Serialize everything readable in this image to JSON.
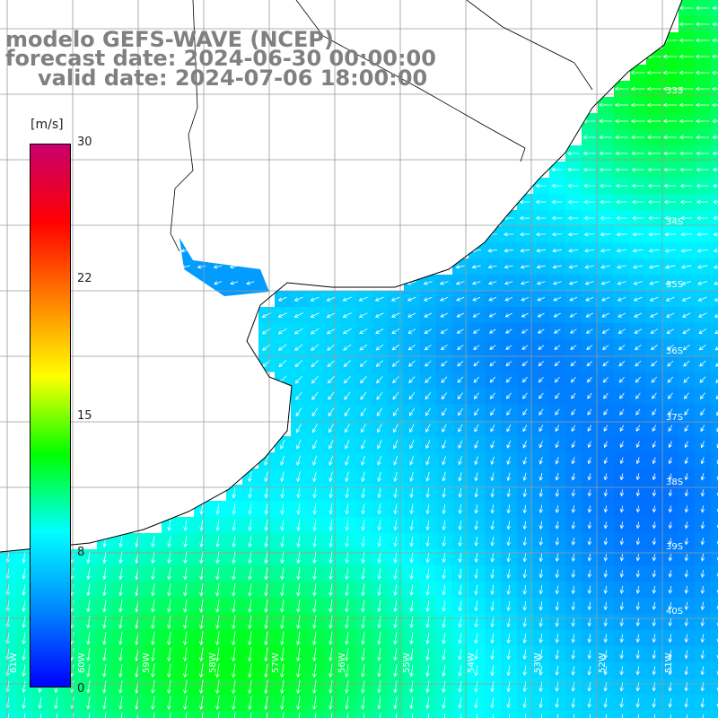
{
  "titles": {
    "line1": "modelo GEFS-WAVE (NCEP)",
    "line2": "forecast date: 2024-06-30 00:00:00",
    "line3": "valid date: 2024-07-06 18:00:00"
  },
  "colorbar": {
    "unit": "[m/s]",
    "ticks": [
      "30",
      "22",
      "15",
      "8",
      "0"
    ],
    "tick_values": [
      30,
      22,
      15,
      8,
      0
    ],
    "range": [
      0,
      30
    ],
    "colors": [
      "#0000ff",
      "#0088ff",
      "#00ffff",
      "#00ff00",
      "#ffff00",
      "#ff8000",
      "#ff0000",
      "#c8006e"
    ]
  },
  "map": {
    "latitude_labels": [
      "33S",
      "34S",
      "35S",
      "36S",
      "37S",
      "38S",
      "39S",
      "40S"
    ],
    "longitude_labels": [
      "61W",
      "60W",
      "59W",
      "58W",
      "57W",
      "56W",
      "55W",
      "54W",
      "53W",
      "52W",
      "51W"
    ],
    "land_color": "#ffffff",
    "coastline_color": "#000000",
    "arrow_color": "#ffffff"
  }
}
